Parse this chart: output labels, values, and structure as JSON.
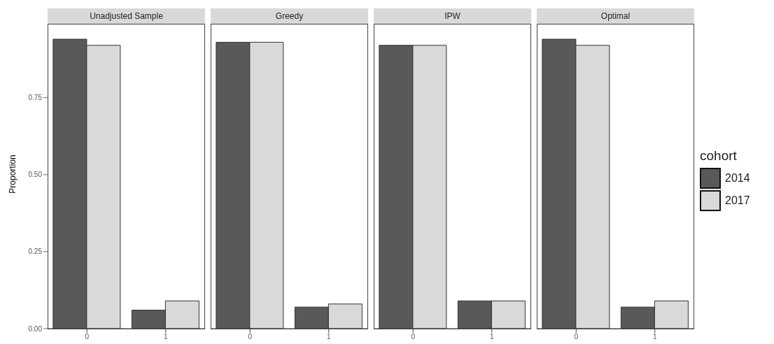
{
  "chart_data": [
    {
      "type": "bar",
      "title": "Unadjusted Sample",
      "ylabel": "Proportion",
      "categories": [
        "0",
        "1"
      ],
      "ylim": [
        0,
        0.99
      ],
      "yticks": [
        {
          "value": 0,
          "label": "0.00"
        },
        0.25,
        {
          "value": 0.5,
          "label": "0.50"
        },
        0.75
      ],
      "series": [
        {
          "color": "#595959",
          "values": [
            0.94,
            0.06
          ]
        },
        {
          "color": "#d9d9d9",
          "values": [
            0.92,
            0.09
          ]
        }
      ]
    },
    {
      "type": "bar",
      "title": "Greedy",
      "categories": [
        "0",
        "1"
      ],
      "ylim": [
        0,
        0.99
      ],
      "tick_labels": "x",
      "series": [
        {
          "color": "#595959",
          "values": [
            0.93,
            0.07
          ]
        },
        {
          "color": "#d9d9d9",
          "values": [
            0.93,
            0.08
          ]
        }
      ]
    },
    {
      "type": "bar",
      "title": "IPW",
      "categories": [
        "0",
        "1"
      ],
      "ylim": [
        0,
        0.99
      ],
      "tick_labels": "x",
      "series": [
        {
          "color": "#595959",
          "values": [
            0.92,
            0.09
          ]
        },
        {
          "color": "#d9d9d9",
          "values": [
            0.92,
            0.09
          ]
        }
      ]
    },
    {
      "type": "bar",
      "title": "Optimal",
      "categories": [
        "0",
        "1"
      ],
      "ylim": [
        0,
        0.99
      ],
      "tick_labels": "x",
      "legend": "right",
      "legend_title": "cohort",
      "series": [
        {
          "name": "2014",
          "color": "#595959",
          "values": [
            0.94,
            0.07
          ]
        },
        {
          "name": "2017",
          "color": "#d9d9d9",
          "values": [
            0.92,
            0.09
          ]
        }
      ]
    }
  ]
}
